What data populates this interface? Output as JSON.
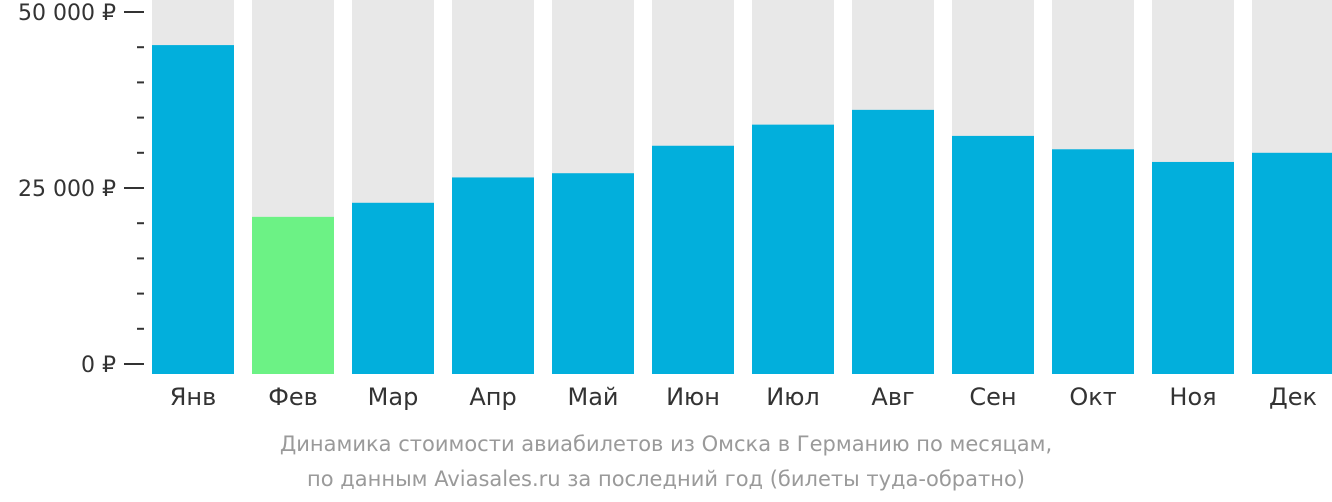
{
  "chart_data": {
    "type": "bar",
    "categories": [
      "Янв",
      "Фев",
      "Мар",
      "Апр",
      "Май",
      "Июн",
      "Июл",
      "Авг",
      "Сен",
      "Окт",
      "Ноя",
      "Дек"
    ],
    "values": [
      45300,
      20900,
      22900,
      26500,
      27100,
      31000,
      34000,
      36100,
      32400,
      30500,
      28700,
      30000
    ],
    "highlight_index": 1,
    "ylim": [
      0,
      50000
    ],
    "yticks": [
      {
        "value": 0,
        "label": "0 ₽"
      },
      {
        "value": 25000,
        "label": "25 000 ₽"
      },
      {
        "value": 50000,
        "label": "50 000 ₽"
      }
    ],
    "minor_tick_step": 5000,
    "colors": {
      "bar": "#02afdc",
      "highlight": "#6cf285",
      "background_bar": "#e8e8e8",
      "axis": "#333333"
    },
    "caption_lines": [
      "Динамика стоимости авиабилетов из Омска в Германию по месяцам,",
      "по данным Aviasales.ru за последний год (билеты туда-обратно)"
    ]
  }
}
